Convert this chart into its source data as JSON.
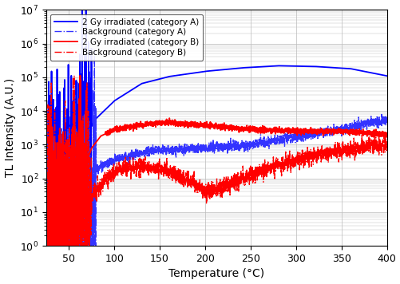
{
  "xlabel": "Temperature (°C)",
  "ylabel": "TL Intensity (A.U.)",
  "xlim": [
    25,
    400
  ],
  "ylim": [
    1.0,
    10000000.0
  ],
  "xticks": [
    50,
    100,
    150,
    200,
    250,
    300,
    350,
    400
  ],
  "legend": [
    "2 Gy irradiated (category A)",
    "Background (category A)",
    "2 Gy irradiated (category B)",
    "Background (category B)"
  ],
  "colors": {
    "cat_a_irrad": "#0000FF",
    "cat_a_bg": "#3333FF",
    "cat_b_irrad": "#FF0000",
    "cat_b_bg": "#FF0000"
  },
  "grid_color": "#BBBBBB",
  "background_color": "#FFFFFF",
  "figsize": [
    5.02,
    3.56
  ],
  "dpi": 100
}
